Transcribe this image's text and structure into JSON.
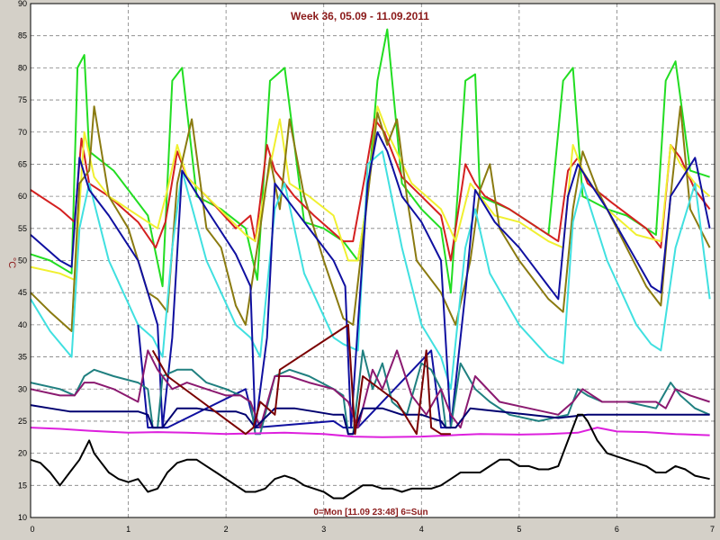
{
  "chart_data": {
    "type": "line",
    "title": "Week 36, 05.09 - 11.09.2011",
    "ylabel": "°C",
    "xlabel": "0=Mon [11.09 23:48] 6=Sun",
    "xlim": [
      0,
      7
    ],
    "ylim": [
      10,
      90
    ],
    "xticks": [
      "0",
      "1",
      "2",
      "3",
      "4",
      "5",
      "6",
      "7"
    ],
    "yticks": [
      "10",
      "15",
      "20",
      "25",
      "30",
      "35",
      "40",
      "45",
      "50",
      "55",
      "60",
      "65",
      "70",
      "75",
      "80",
      "85",
      "90"
    ],
    "grid": "dashed",
    "series": [
      {
        "color": "#22dd22",
        "x": [
          0,
          0.2,
          0.42,
          0.48,
          0.55,
          0.6,
          0.85,
          1.2,
          1.35,
          1.45,
          1.55,
          1.7,
          1.95,
          2.2,
          2.32,
          2.45,
          2.6,
          2.8,
          3.0,
          3.2,
          3.35,
          3.45,
          3.55,
          3.65,
          3.8,
          4.0,
          4.2,
          4.3,
          4.45,
          4.55,
          4.6,
          4.9,
          5.1,
          5.3,
          5.45,
          5.55,
          5.65,
          5.9,
          6.1,
          6.4,
          6.5,
          6.6,
          6.75,
          6.95
        ],
        "y": [
          51,
          50,
          48,
          80,
          82,
          67,
          64,
          57,
          46,
          78,
          80,
          60,
          58,
          55,
          47,
          78,
          80,
          56,
          55,
          53,
          50,
          60,
          78,
          86,
          62,
          58,
          55,
          45,
          78,
          79,
          60,
          58,
          56,
          54,
          78,
          80,
          60,
          58,
          57,
          54,
          78,
          81,
          64,
          63
        ]
      },
      {
        "color": "#d42020",
        "x": [
          0,
          0.3,
          0.45,
          0.52,
          0.6,
          0.8,
          1.1,
          1.28,
          1.38,
          1.5,
          1.6,
          1.8,
          2.1,
          2.25,
          2.3,
          2.42,
          2.5,
          2.7,
          2.9,
          3.2,
          3.3,
          3.42,
          3.52,
          3.62,
          3.8,
          4.0,
          4.2,
          4.3,
          4.45,
          4.55,
          4.65,
          4.9,
          5.2,
          5.4,
          5.5,
          5.6,
          5.7,
          5.95,
          6.3,
          6.45,
          6.55,
          6.65,
          6.8,
          6.95
        ],
        "y": [
          61,
          58,
          56,
          69,
          62,
          60,
          56,
          52,
          56,
          67,
          63,
          60,
          55,
          57,
          53,
          68,
          64,
          60,
          57,
          53,
          53,
          63,
          72,
          70,
          63,
          60,
          57,
          50,
          65,
          62,
          60,
          58,
          55,
          53,
          64,
          66,
          62,
          59,
          55,
          52,
          68,
          66,
          61,
          58
        ]
      },
      {
        "color": "#f0f030",
        "x": [
          0,
          0.3,
          0.45,
          0.55,
          0.65,
          0.8,
          1.0,
          1.3,
          1.4,
          1.5,
          1.6,
          1.8,
          2.2,
          2.3,
          2.4,
          2.55,
          2.65,
          2.85,
          3.1,
          3.25,
          3.35,
          3.45,
          3.55,
          3.65,
          3.9,
          4.2,
          4.35,
          4.5,
          4.6,
          4.75,
          5.0,
          5.3,
          5.45,
          5.55,
          5.65,
          5.9,
          6.2,
          6.45,
          6.55,
          6.65,
          6.8,
          6.95
        ],
        "y": [
          49,
          48,
          47,
          70,
          63,
          60,
          58,
          55,
          61,
          68,
          63,
          60,
          54,
          53,
          61,
          72,
          62,
          60,
          57,
          50,
          50,
          60,
          74,
          70,
          62,
          58,
          53,
          62,
          60,
          57,
          56,
          53,
          52,
          68,
          64,
          58,
          54,
          53,
          68,
          65,
          62,
          60
        ]
      },
      {
        "color": "#8a7a10",
        "x": [
          0,
          0.2,
          0.42,
          0.5,
          0.6,
          0.65,
          0.8,
          1.0,
          1.2,
          1.3,
          1.4,
          1.5,
          1.65,
          1.8,
          1.95,
          2.1,
          2.2,
          2.35,
          2.45,
          2.55,
          2.65,
          2.8,
          3.0,
          3.2,
          3.3,
          3.45,
          3.55,
          3.65,
          3.75,
          3.85,
          3.95,
          4.2,
          4.35,
          4.5,
          4.6,
          4.7,
          4.8,
          5.0,
          5.3,
          5.45,
          5.55,
          5.65,
          5.8,
          6.0,
          6.3,
          6.45,
          6.55,
          6.65,
          6.75,
          6.95
        ],
        "y": [
          45,
          42,
          39,
          62,
          64,
          74,
          60,
          55,
          45,
          44,
          42,
          62,
          72,
          55,
          52,
          43,
          40,
          55,
          66,
          58,
          72,
          60,
          50,
          41,
          40,
          60,
          73,
          68,
          72,
          60,
          50,
          45,
          40,
          50,
          61,
          65,
          55,
          50,
          44,
          42,
          58,
          67,
          61,
          55,
          46,
          43,
          60,
          74,
          58,
          52
        ]
      },
      {
        "color": "#40e0e0",
        "x": [
          0,
          0.2,
          0.42,
          0.5,
          0.6,
          0.8,
          1.1,
          1.25,
          1.35,
          1.45,
          1.55,
          1.8,
          2.1,
          2.25,
          2.35,
          2.5,
          2.6,
          2.8,
          3.1,
          3.2,
          3.35,
          3.45,
          3.6,
          3.8,
          4.0,
          4.2,
          4.3,
          4.45,
          4.55,
          4.7,
          5.0,
          5.3,
          5.45,
          5.55,
          5.65,
          5.9,
          6.2,
          6.35,
          6.45,
          6.6,
          6.8,
          6.95
        ],
        "y": [
          44,
          39,
          35,
          55,
          62,
          50,
          40,
          38,
          35,
          52,
          64,
          50,
          40,
          38,
          35,
          58,
          62,
          48,
          38,
          37,
          36,
          65,
          67,
          52,
          40,
          35,
          30,
          52,
          58,
          48,
          40,
          35,
          34,
          56,
          62,
          50,
          40,
          37,
          36,
          52,
          62,
          44
        ]
      },
      {
        "color": "#1010a0",
        "x": [
          0,
          0.3,
          0.42,
          0.5,
          0.6,
          0.8,
          1.1,
          1.2,
          1.3,
          1.35,
          1.45,
          1.55,
          1.8,
          2.1,
          2.25,
          2.3,
          2.42,
          2.5,
          2.8,
          3.1,
          3.22,
          3.28,
          3.35,
          3.45,
          3.55,
          3.65,
          3.8,
          4.0,
          4.2,
          4.3,
          4.45,
          4.55,
          4.75,
          5.0,
          5.3,
          5.4,
          5.5,
          5.6,
          5.9,
          6.2,
          6.35,
          6.45,
          6.55,
          6.8,
          6.95
        ],
        "y": [
          54,
          50,
          49,
          66,
          61,
          57,
          50,
          45,
          40,
          24,
          38,
          64,
          58,
          51,
          46,
          24,
          38,
          62,
          56,
          50,
          46,
          24,
          40,
          62,
          70,
          67,
          60,
          56,
          50,
          24,
          45,
          61,
          56,
          52,
          46,
          44,
          60,
          65,
          58,
          50,
          46,
          45,
          60,
          66,
          55
        ]
      },
      {
        "color": "#1010a0",
        "x": [
          1.1,
          1.2,
          1.3,
          1.4,
          2.2,
          2.3,
          3.1,
          3.2,
          3.3,
          3.35,
          4.1,
          4.2,
          4.3
        ],
        "y": [
          40,
          24,
          24,
          24,
          30,
          24,
          25,
          24,
          24,
          24,
          36,
          24,
          24
        ]
      },
      {
        "color": "#208080",
        "x": [
          0,
          0.3,
          0.45,
          0.55,
          0.65,
          0.85,
          1.1,
          1.2,
          1.25,
          1.3,
          1.35,
          1.5,
          1.65,
          1.8,
          2.0,
          2.15,
          2.25,
          2.3,
          2.35,
          2.5,
          2.65,
          2.85,
          3.1,
          3.2,
          3.25,
          3.3,
          3.4,
          3.5,
          3.6,
          3.7,
          3.85,
          4.0,
          4.1,
          4.2,
          4.25,
          4.3,
          4.4,
          4.55,
          4.7,
          4.9,
          5.2,
          5.5,
          5.6,
          5.7,
          5.85,
          6.1,
          6.4,
          6.55,
          6.65,
          6.8,
          6.95
        ],
        "y": [
          31,
          30,
          29,
          32,
          33,
          32,
          31,
          30,
          24,
          24,
          32,
          33,
          33,
          31,
          30,
          29,
          28,
          23,
          23,
          32,
          33,
          32,
          30,
          29,
          23,
          23,
          36,
          30,
          34,
          28,
          26,
          34,
          33,
          30,
          24,
          24,
          34,
          30,
          28,
          26,
          25,
          26,
          30,
          29,
          28,
          28,
          27,
          31,
          29,
          27,
          26
        ]
      },
      {
        "color": "#8b1a70",
        "x": [
          0,
          0.3,
          0.45,
          0.55,
          0.65,
          0.85,
          1.1,
          1.2,
          1.3,
          1.45,
          1.6,
          1.8,
          2.0,
          2.15,
          2.25,
          2.35,
          2.5,
          2.65,
          2.85,
          3.1,
          3.25,
          3.35,
          3.5,
          3.6,
          3.75,
          3.9,
          4.05,
          4.2,
          4.3,
          4.4,
          4.55,
          4.8,
          5.1,
          5.4,
          5.55,
          5.65,
          5.85,
          6.1,
          6.4,
          6.5,
          6.6,
          6.75,
          6.95
        ],
        "y": [
          30,
          29,
          29,
          31,
          31,
          30,
          28,
          36,
          33,
          30,
          31,
          30,
          29,
          29,
          28,
          24,
          32,
          32,
          31,
          30,
          28,
          24,
          33,
          30,
          36,
          29,
          26,
          30,
          26,
          24,
          32,
          28,
          27,
          26,
          28,
          30,
          28,
          28,
          28,
          27,
          30,
          29,
          28
        ]
      },
      {
        "color": "#000070",
        "x": [
          0,
          0.2,
          0.4,
          0.6,
          0.8,
          1.0,
          1.1,
          1.2,
          1.25,
          1.35,
          1.5,
          1.7,
          1.9,
          2.1,
          2.2,
          2.3,
          2.5,
          2.7,
          2.9,
          3.1,
          3.2,
          3.25,
          3.3,
          3.4,
          3.6,
          3.8,
          4.0,
          4.1,
          4.2,
          4.25,
          4.35,
          4.5,
          4.8,
          5.1,
          5.4,
          5.7,
          6.0,
          6.3,
          6.6,
          6.95
        ],
        "y": [
          27.5,
          27,
          26.5,
          26.5,
          26.5,
          26.5,
          26.5,
          26,
          24,
          24,
          27,
          27,
          26.5,
          26.5,
          26,
          24,
          27,
          27,
          26.5,
          26,
          26,
          23,
          23,
          27,
          27,
          26,
          26,
          25.5,
          25,
          24,
          24,
          27,
          26.5,
          26,
          25.5,
          26,
          26,
          26,
          26,
          26
        ]
      },
      {
        "color": "#dd20dd",
        "x": [
          0,
          0.3,
          0.6,
          1.0,
          1.3,
          1.6,
          2.0,
          2.3,
          2.6,
          3.0,
          3.3,
          3.6,
          4.0,
          4.3,
          4.6,
          5.0,
          5.3,
          5.6,
          5.8,
          6.0,
          6.3,
          6.6,
          6.95
        ],
        "y": [
          24,
          23.8,
          23.5,
          23.2,
          23.3,
          23.2,
          23.0,
          23.1,
          23.2,
          23.0,
          22.6,
          22.5,
          22.6,
          22.8,
          23.0,
          22.9,
          23.0,
          23.2,
          24,
          23.4,
          23.3,
          23.0,
          22.8
        ]
      },
      {
        "color": "#000000",
        "x": [
          0,
          0.1,
          0.2,
          0.3,
          0.4,
          0.5,
          0.6,
          0.65,
          0.7,
          0.8,
          0.9,
          1.0,
          1.1,
          1.2,
          1.3,
          1.4,
          1.5,
          1.6,
          1.7,
          1.8,
          1.9,
          2.0,
          2.1,
          2.2,
          2.3,
          2.4,
          2.5,
          2.6,
          2.7,
          2.8,
          2.9,
          3.0,
          3.1,
          3.2,
          3.3,
          3.4,
          3.5,
          3.6,
          3.7,
          3.8,
          3.9,
          4.0,
          4.1,
          4.2,
          4.3,
          4.4,
          4.5,
          4.6,
          4.7,
          4.8,
          4.9,
          5.0,
          5.1,
          5.2,
          5.3,
          5.4,
          5.5,
          5.6,
          5.65,
          5.7,
          5.8,
          5.9,
          6.0,
          6.1,
          6.2,
          6.3,
          6.4,
          6.5,
          6.6,
          6.7,
          6.8,
          6.95
        ],
        "y": [
          19,
          18.5,
          17,
          15,
          17,
          19,
          22,
          20,
          19,
          17,
          16,
          15.5,
          16,
          14,
          14.5,
          17,
          18.5,
          19,
          19,
          18,
          17,
          16,
          15,
          14,
          14,
          14.5,
          16,
          16.5,
          16,
          15,
          14.5,
          14,
          13,
          13,
          14,
          15,
          15,
          14.5,
          14.5,
          14,
          14.5,
          14.5,
          14.5,
          15,
          16,
          17,
          17,
          17,
          18,
          19,
          19,
          18,
          18,
          17.5,
          17.5,
          18,
          22,
          26,
          26,
          25,
          22,
          20,
          19.5,
          19,
          18.5,
          18,
          17,
          17,
          18,
          17.5,
          16.5,
          16
        ]
      },
      {
        "color": "#7a0000",
        "x": [
          1.25,
          1.4,
          2.2,
          2.28,
          2.35,
          2.5,
          2.55,
          3.25,
          3.32,
          3.4,
          3.75,
          3.95,
          4.05,
          4.1,
          4.2,
          4.3
        ],
        "y": [
          36,
          32,
          23,
          24,
          28,
          26,
          33,
          40,
          23,
          32,
          28,
          23,
          36,
          24,
          23,
          23
        ]
      }
    ]
  }
}
